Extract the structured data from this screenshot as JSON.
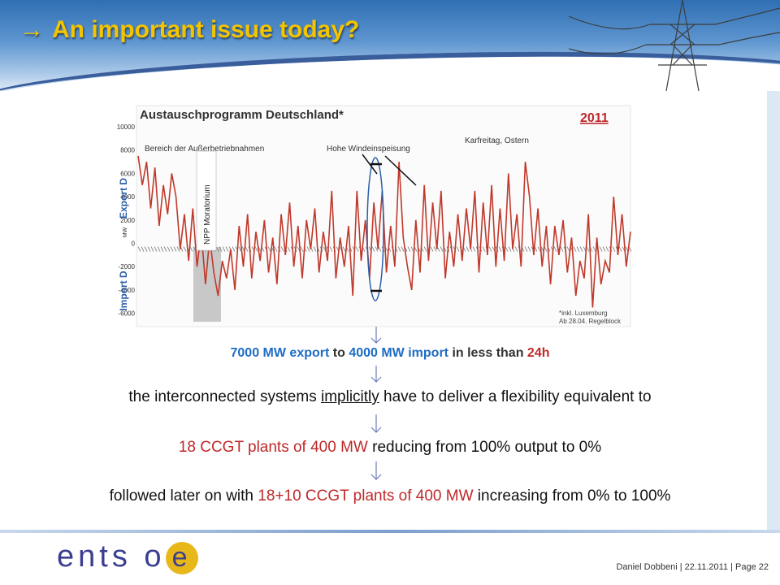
{
  "slide": {
    "title_arrow": "→",
    "title": "An important issue today?",
    "footer": "Daniel Dobbeni | 22.11.2011 | Page 22",
    "logo_text": "ents o",
    "logo_letters": [
      "e",
      "n",
      "t",
      "s",
      "o"
    ],
    "logo_e": "e"
  },
  "captions": {
    "line1": {
      "a": "7000 MW export",
      "b": " to ",
      "c": "4000 MW import",
      "d": " in less than ",
      "e": "24h"
    },
    "line2": {
      "a": "the interconnected systems ",
      "b": "implicitly",
      "c": " have to deliver a flexibility equivalent to"
    },
    "line3": {
      "a": "18 CCGT plants of 400 MW",
      "b": " reducing from 100% output to 0%"
    },
    "line4": {
      "a": "followed later on with ",
      "b": "18+10 CCGT plants of 400 MW",
      "c": " increasing from 0% to 100%"
    }
  },
  "chart_data": {
    "type": "line",
    "title": "Austauschprogramm Deutschland*",
    "year_label": "2011",
    "ylabel_export": "Export D",
    "ylabel_import": "Import D",
    "yunit": "MW",
    "ylim": [
      -7000,
      10000
    ],
    "yticks": [
      10000,
      8000,
      6000,
      4000,
      2000,
      0,
      -2000,
      -4000,
      -6000
    ],
    "annotations": {
      "bereich": "Bereich der Außerbetriebnahmen",
      "wind": "Hohe Windeinspeisung",
      "karfreitag": "Karfreitag, Ostern",
      "npp": "NPP Moratorium",
      "footnote1": "*inkl. Luxemburg",
      "footnote2": "Ab 28.04. Regelblock"
    },
    "series": [
      {
        "name": "",
        "color": "#c0392b",
        "values": [
          7500,
          5000,
          7000,
          3000,
          6500,
          1500,
          5000,
          2500,
          6000,
          4000,
          -500,
          2500,
          -1500,
          3000,
          -2000,
          1000,
          -3500,
          500,
          -2500,
          -4500,
          -1500,
          -3000,
          -500,
          -4000,
          1500,
          -2000,
          2500,
          -3000,
          1000,
          -1500,
          2000,
          -2500,
          500,
          -3500,
          2500,
          -1000,
          3500,
          -2000,
          1500,
          -3000,
          2000,
          -500,
          3000,
          -2500,
          1000,
          -1500,
          4500,
          -3000,
          500,
          -2000,
          1500,
          -4500,
          4500,
          -1500,
          2000,
          -3000,
          3500,
          -500,
          4500,
          -2500,
          1500,
          -2000,
          7000,
          500,
          -2000,
          -4000,
          2000,
          -2500,
          5000,
          -1500,
          3500,
          -500,
          4500,
          -3000,
          1000,
          -2000,
          2500,
          -1500,
          3000,
          -500,
          4500,
          -2500,
          3500,
          -1000,
          5000,
          -2000,
          3000,
          -1500,
          6000,
          -500,
          2500,
          -2000,
          7000,
          4000,
          -1000,
          3000,
          -2000,
          1500,
          -3500,
          1500,
          -1000,
          2000,
          -2500,
          500,
          -4500,
          -1500,
          -3000,
          2500,
          -5500,
          500,
          -3500,
          -1500,
          -2500,
          4000,
          -1000,
          2500,
          -2000,
          1000
        ]
      }
    ]
  }
}
